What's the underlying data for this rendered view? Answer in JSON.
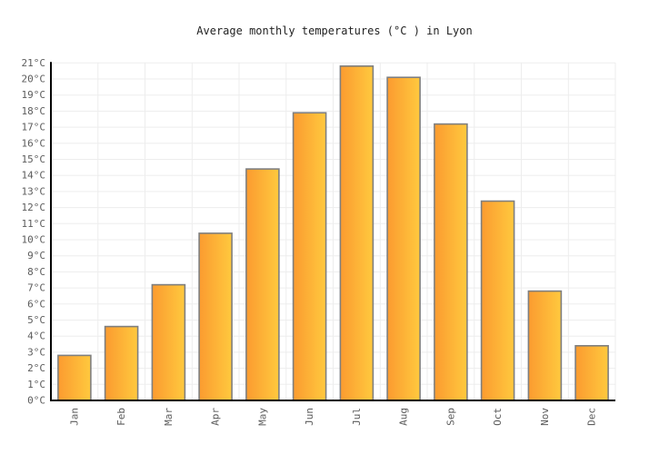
{
  "chart_data": {
    "type": "bar",
    "title": "Average monthly temperatures (°C ) in Lyon",
    "categories": [
      "Jan",
      "Feb",
      "Mar",
      "Apr",
      "May",
      "Jun",
      "Jul",
      "Aug",
      "Sep",
      "Oct",
      "Nov",
      "Dec"
    ],
    "values": [
      2.8,
      4.6,
      7.2,
      10.4,
      14.4,
      17.9,
      20.8,
      20.1,
      17.2,
      12.4,
      6.8,
      3.4
    ],
    "unit": "°C",
    "xlabel": "",
    "ylabel": "",
    "ylim": [
      0,
      21
    ],
    "ytick_step": 1,
    "ytick_suffix": "°C",
    "grid": "on",
    "legend": "none",
    "colors": {
      "bar_gradient_left": "#fb9b30",
      "bar_gradient_right": "#ffc93e",
      "bar_border": "#7f7f7f",
      "gridline": "#ededed",
      "axis_line": "#000000",
      "tick_label": "#5c5c5c",
      "title_text": "#222222",
      "background": "#ffffff"
    }
  }
}
